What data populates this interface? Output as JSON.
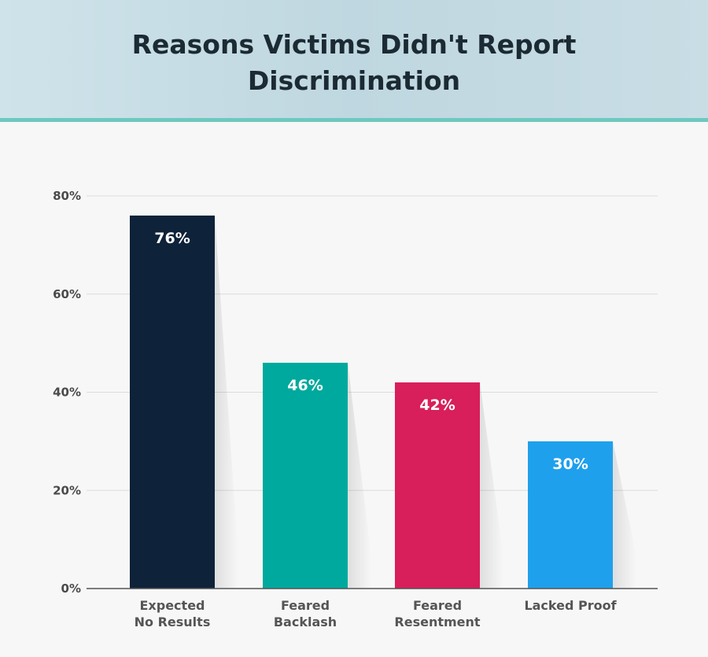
{
  "header": {
    "title_line1": "Reasons Victims Didn't Report",
    "title_line2": "Discrimination"
  },
  "colors": {
    "header_rule": "#6ec8c0",
    "grid": "#dcdcdc",
    "axis": "#555555"
  },
  "chart_data": {
    "type": "bar",
    "title": "Reasons Victims Didn't Report Discrimination",
    "xlabel": "",
    "ylabel": "",
    "ylim": [
      0,
      80
    ],
    "yticks": [
      0,
      20,
      40,
      60,
      80
    ],
    "ytick_labels": [
      "0%",
      "20%",
      "40%",
      "60%",
      "80%"
    ],
    "grid": true,
    "categories": [
      [
        "Expected",
        "No Results"
      ],
      [
        "Feared",
        "Backlash"
      ],
      [
        "Feared",
        "Resentment"
      ],
      [
        "Lacked Proof"
      ]
    ],
    "values": [
      76,
      46,
      42,
      30
    ],
    "value_labels": [
      "76%",
      "46%",
      "42%",
      "30%"
    ],
    "bar_colors": [
      "#0e2239",
      "#00a99d",
      "#d81e5b",
      "#1fa0ec"
    ]
  }
}
